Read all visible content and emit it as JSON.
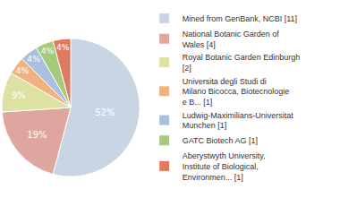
{
  "chart_data": {
    "type": "pie",
    "categories": [
      "Mined from GenBank, NCBI [11]",
      "National Botanic Garden of Wales [4]",
      "Royal Botanic Garden Edinburgh [2]",
      "Universita degli Studi di Milano Bicocca, Biotecnologie e B... [1]",
      "Ludwig-Maximilians-Universitat Munchen [1]",
      "GATC Biotech AG [1]",
      "Aberystwyth University, Institute of Biological, Environmen... [1]"
    ],
    "values": [
      52,
      19,
      9,
      4,
      4,
      4,
      4
    ],
    "value_labels": [
      "52%",
      "19%",
      "9%",
      "4%",
      "4%",
      "4%",
      "4%"
    ],
    "data_labels": true,
    "colors": [
      "#c9d5e3",
      "#dea69e",
      "#dde1a1",
      "#f0b27e",
      "#a9bfe0",
      "#a6c97c",
      "#dd7a60"
    ],
    "legend": "right"
  }
}
